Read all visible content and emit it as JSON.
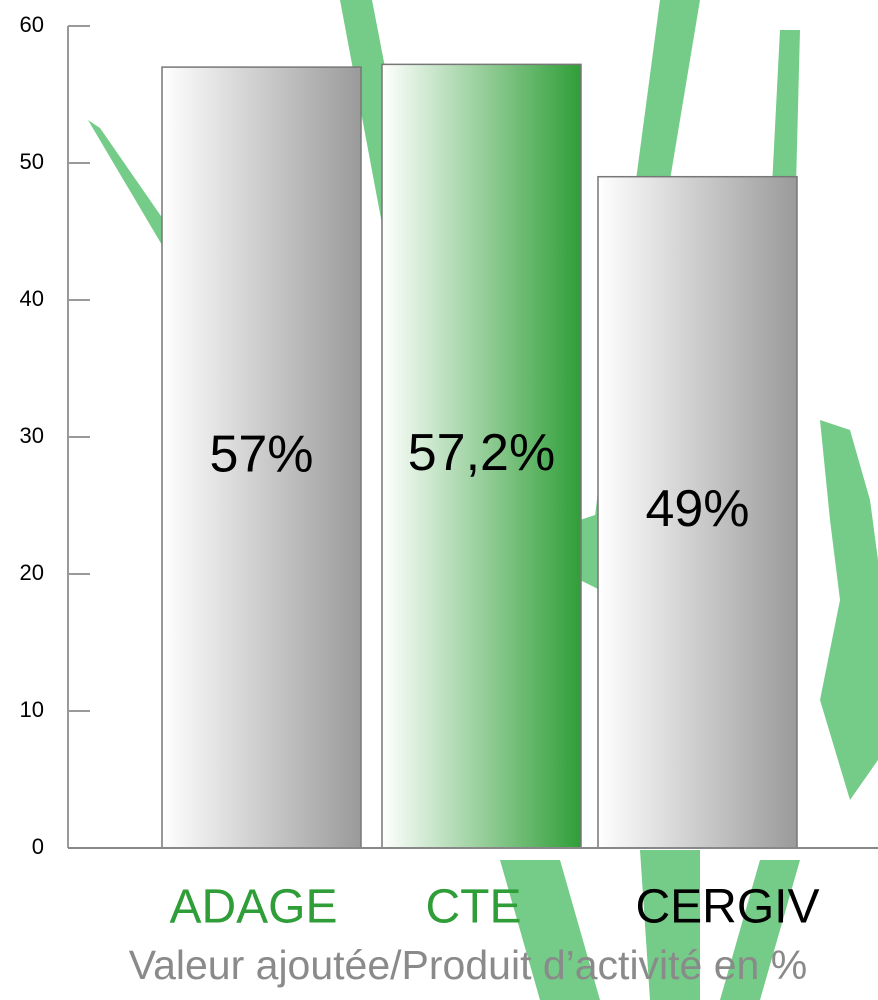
{
  "chart_data": {
    "type": "bar",
    "categories": [
      "ADAGE",
      "CTE",
      "CERGIV"
    ],
    "values": [
      57,
      57.2,
      49
    ],
    "value_labels": [
      "57%",
      "57,2%",
      "49%"
    ],
    "colors": [
      "#9a9a9a",
      "#2f9e38",
      "#9a9a9a"
    ],
    "category_colors": [
      "#2f9e38",
      "#2f9e38",
      "#000000"
    ],
    "x_label": "Valeur ajoutée/Produit d’activité en %",
    "ylim": [
      0,
      60
    ],
    "yticks": [
      0,
      10,
      20,
      30,
      40,
      50,
      60
    ]
  }
}
